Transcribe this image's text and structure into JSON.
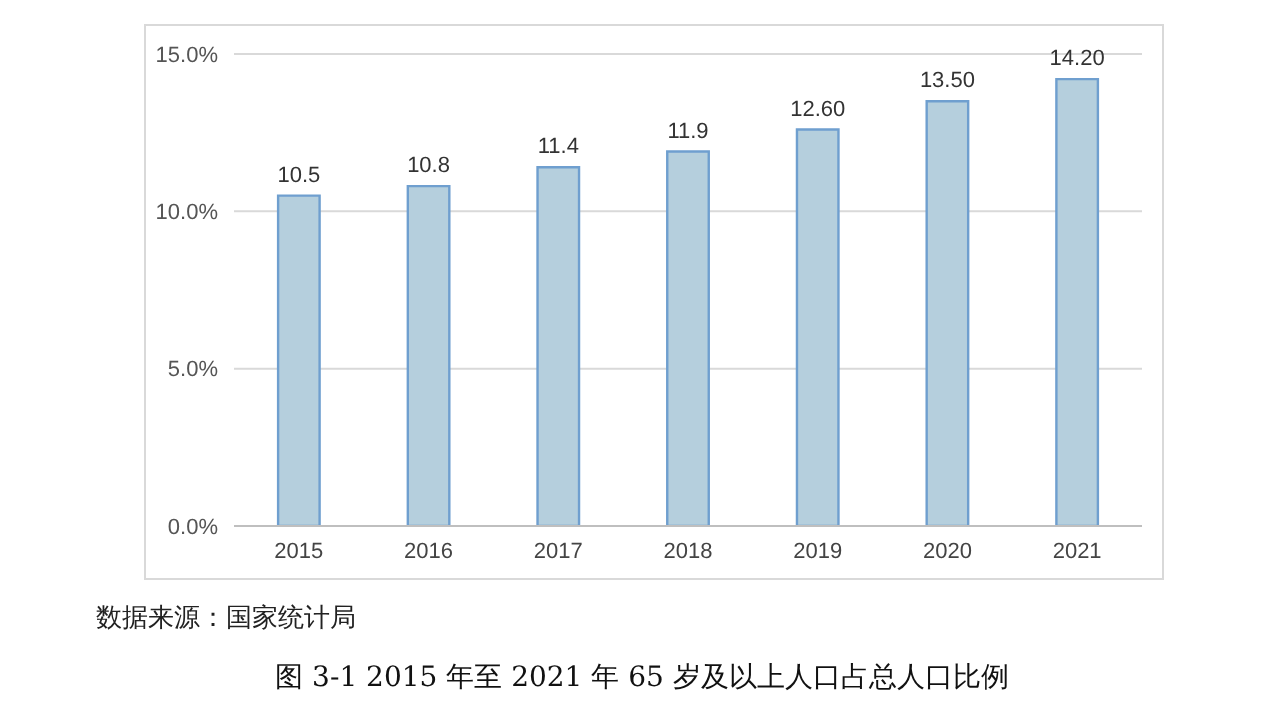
{
  "chart_data": {
    "type": "bar",
    "title": "图 3-1 2015 年至 2021 年 65 岁及以上人口占总人口比例",
    "categories": [
      "2015",
      "2016",
      "2017",
      "2018",
      "2019",
      "2020",
      "2021"
    ],
    "values": [
      10.5,
      10.8,
      11.4,
      11.9,
      12.6,
      13.5,
      14.2
    ],
    "value_labels": [
      "10.5",
      "10.8",
      "11.4",
      "11.9",
      "12.60",
      "13.50",
      "14.20"
    ],
    "color": "#b5cfdd",
    "ylim": [
      0,
      15
    ],
    "yticks": [
      {
        "value": 0,
        "label": "0.0%"
      },
      {
        "value": 5,
        "label": "5.0%"
      },
      {
        "value": 10,
        "label": "10.0%"
      },
      {
        "value": 15,
        "label": "15.0%"
      }
    ],
    "grid": "y",
    "annotations": [
      "数据来源：国家统计局"
    ]
  }
}
